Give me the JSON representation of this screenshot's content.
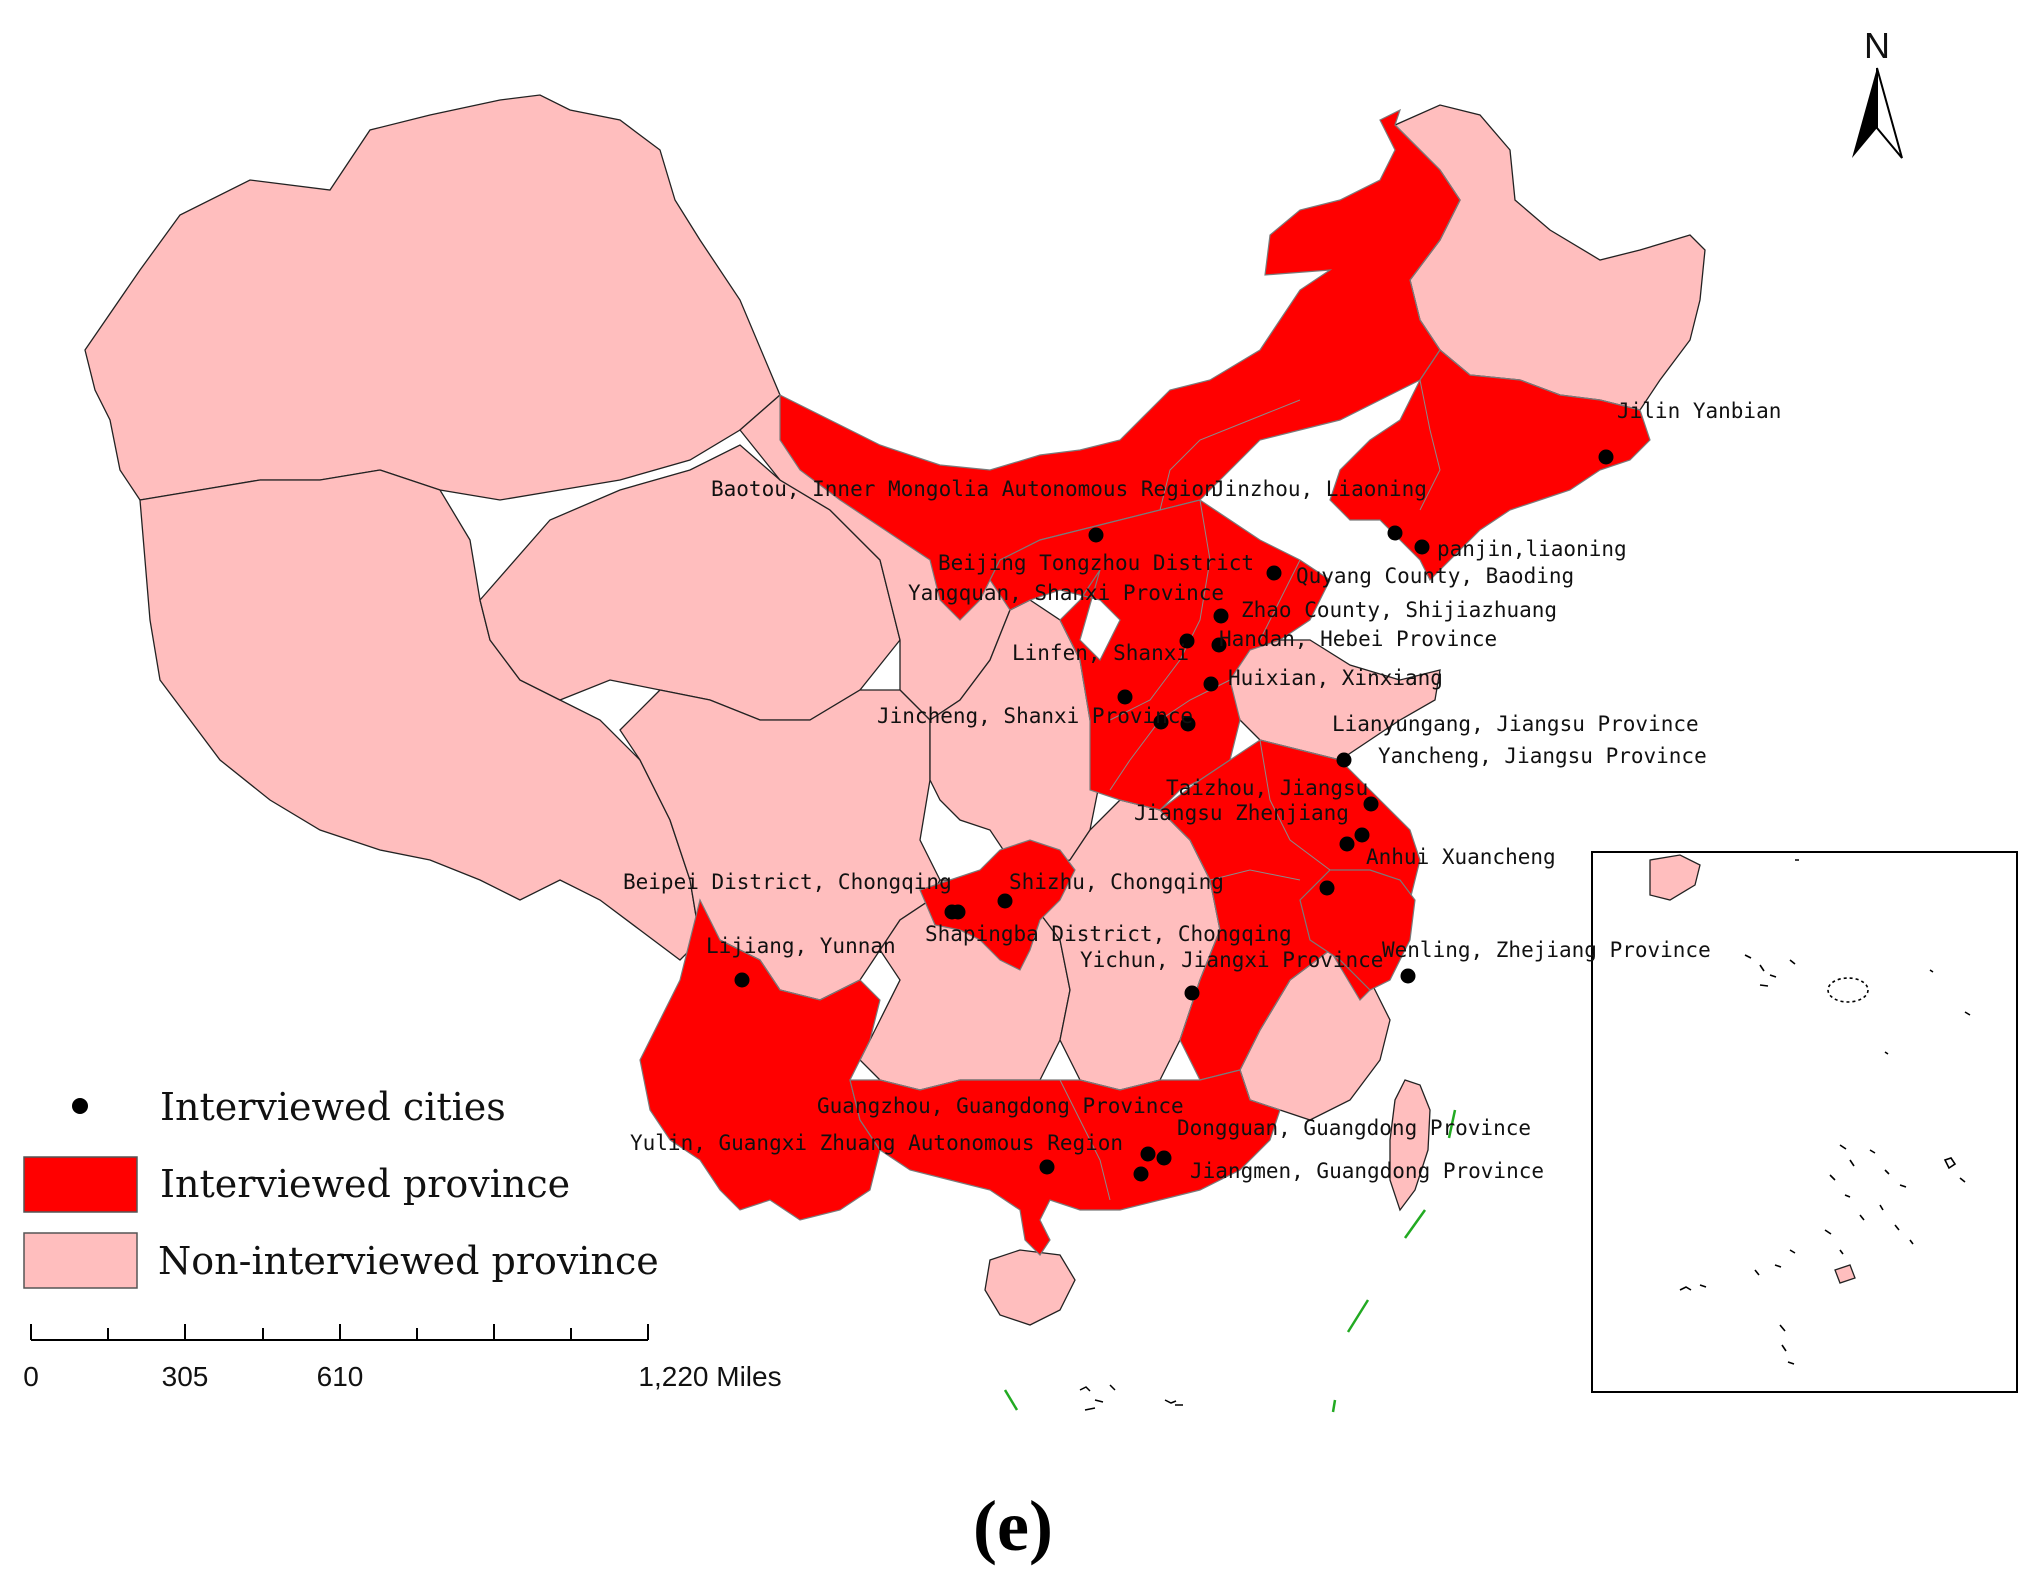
{
  "map": {
    "north_label": "N",
    "caption": "(e)",
    "colors": {
      "interviewed_province": "#ff0000",
      "non_interviewed_province": "#ffbebe",
      "city_marker": "#000000"
    },
    "legend": {
      "cities": "Interviewed cities",
      "interviewed": "Interviewed province",
      "non_interviewed": "Non-interviewed province"
    },
    "scale_bar": {
      "labels": [
        "0",
        "305",
        "610",
        "1,220 Miles"
      ]
    },
    "city_labels": [
      "Jilin Yanbian",
      "Baotou, Inner Mongolia Autonomous Region",
      "Jinzhou, Liaoning",
      "panjin,liaoning",
      "Beijing Tongzhou District",
      "Quyang County, Baoding",
      "Yangquan, Shanxi Province",
      "Zhao County, Shijiazhuang",
      "Handan, Hebei Province",
      "Linfen, Shanxi",
      "Huixian, Xinxiang",
      "Jincheng, Shanxi Province",
      "Lianyungang, Jiangsu Province",
      "Yancheng, Jiangsu Province",
      "Taizhou, Jiangsu",
      "Jiangsu Zhenjiang",
      "Anhui Xuancheng",
      "Beipei District, Chongqing",
      "Shizhu, Chongqing",
      "Shapingba District, Chongqing",
      "Lijiang, Yunnan",
      "Yichun, Jiangxi Province",
      "Wenling, Zhejiang Province",
      "Guangzhou, Guangdong Province",
      "Yulin, Guangxi Zhuang Autonomous Region",
      "Dongguan, Guangdong Province",
      "Jiangmen, Guangdong Province"
    ]
  }
}
